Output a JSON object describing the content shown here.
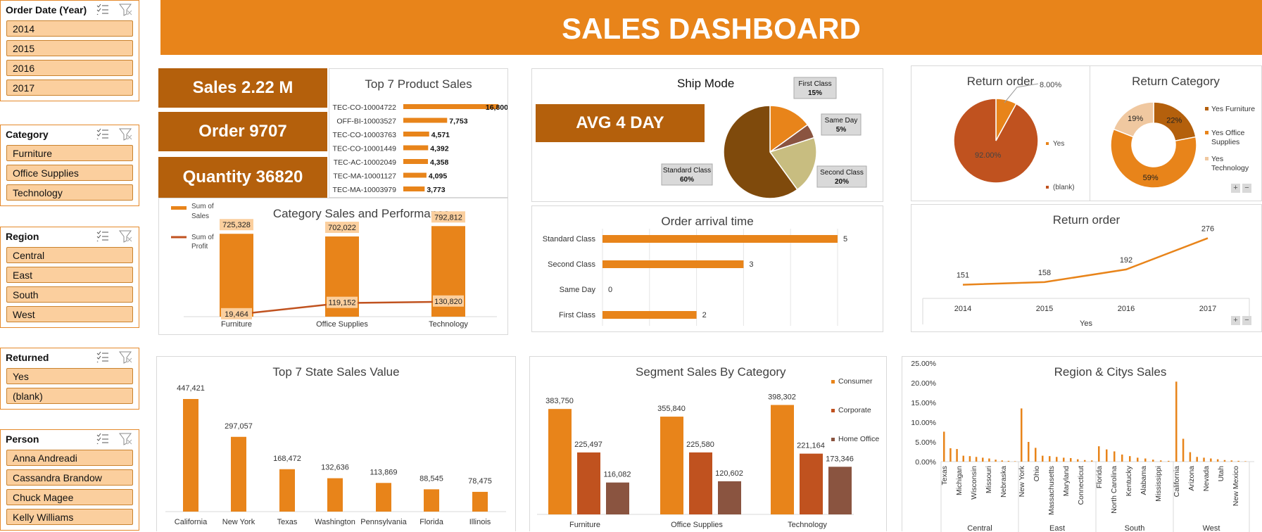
{
  "header": {
    "title": "SALES DASHBOARD"
  },
  "slicers": [
    {
      "title": "Order Date (Year)",
      "items": [
        "2014",
        "2015",
        "2016",
        "2017"
      ]
    },
    {
      "title": "Category",
      "items": [
        "Furniture",
        "Office Supplies",
        "Technology"
      ]
    },
    {
      "title": "Region",
      "items": [
        "Central",
        "East",
        "South",
        "West"
      ]
    },
    {
      "title": "Returned",
      "items": [
        "Yes",
        "(blank)"
      ]
    },
    {
      "title": "Person",
      "items": [
        "Anna Andreadi",
        "Cassandra Brandow",
        "Chuck Magee",
        "Kelly Williams"
      ]
    }
  ],
  "kpis": {
    "sales": "Sales   2.22 M",
    "order": "Order   9707",
    "quantity": "Quantity 36820",
    "avg": "AVG 4 DAY"
  },
  "colors": {
    "orange": "#e8841a",
    "brown": "#b4600c",
    "dark_brown": "#7f4a0c",
    "profit": "#c0521f",
    "tan": "#c8bd80",
    "mid_brown": "#8a5440"
  },
  "chart_data": [
    {
      "id": "top7product",
      "type": "bar",
      "title": "Top 7 Product Sales",
      "categories": [
        "TEC-CO-10004722",
        "OFF-BI-10003527",
        "TEC-CO-10003763",
        "TEC-CO-10001449",
        "TEC-AC-10002049",
        "TEC-MA-10001127",
        "TEC-MA-10003979"
      ],
      "values": [
        16800,
        7753,
        4571,
        4392,
        4358,
        4095,
        3773
      ],
      "labels": [
        "16,800",
        "7,753",
        "4,571",
        "4,392",
        "4,358",
        "4,095",
        "3,773"
      ]
    },
    {
      "id": "category_perf",
      "type": "bar",
      "title": "Category Sales and Performance",
      "categories": [
        "Furniture",
        "Office Supplies",
        "Technology"
      ],
      "series": [
        {
          "name": "Sum of Sales",
          "values": [
            725328,
            702022,
            792812
          ],
          "labels": [
            "725,328",
            "702,022",
            "792,812"
          ]
        },
        {
          "name": "Sum of Profit",
          "values": [
            19464,
            119152,
            130820
          ],
          "labels": [
            "19,464",
            "119,152",
            "130,820"
          ]
        }
      ]
    },
    {
      "id": "shipmode",
      "type": "pie",
      "title": "Ship Mode",
      "slices": [
        {
          "name": "First Class",
          "value": 15,
          "label": "15%"
        },
        {
          "name": "Same Day",
          "value": 5,
          "label": "5%"
        },
        {
          "name": "Second Class",
          "value": 20,
          "label": "20%"
        },
        {
          "name": "Standard Class",
          "value": 60,
          "label": "60%"
        }
      ]
    },
    {
      "id": "arrival",
      "type": "bar",
      "title": "Order arrival time",
      "categories": [
        "Standard Class",
        "Second Class",
        "Same Day",
        "First Class"
      ],
      "values": [
        5,
        3,
        0,
        2
      ],
      "labels": [
        "5",
        "3",
        "0",
        "2"
      ]
    },
    {
      "id": "return_order_pie",
      "type": "pie",
      "title": "Return order",
      "slices": [
        {
          "name": "Yes",
          "value": 8,
          "label": "8.00%"
        },
        {
          "name": "(blank)",
          "value": 92,
          "label": "92.00%"
        }
      ]
    },
    {
      "id": "return_category",
      "type": "pie",
      "title": "Return Category",
      "slices": [
        {
          "name": "Yes Furniture",
          "value": 22,
          "label": "22%"
        },
        {
          "name": "Yes Office Supplies",
          "value": 59,
          "label": "59%"
        },
        {
          "name": "Yes Technology",
          "value": 19,
          "label": "19%"
        }
      ]
    },
    {
      "id": "return_line",
      "type": "line",
      "title": "Return order",
      "x": [
        "2014",
        "2015",
        "2016",
        "2017"
      ],
      "values": [
        151,
        158,
        192,
        276
      ],
      "labels": [
        "151",
        "158",
        "192",
        "276"
      ],
      "xlabel": "Yes"
    },
    {
      "id": "top7state",
      "type": "bar",
      "title": "Top 7  State Sales Value",
      "categories": [
        "California",
        "New York",
        "Texas",
        "Washington",
        "Pennsylvania",
        "Florida",
        "Illinois"
      ],
      "values": [
        447421,
        297057,
        168472,
        132636,
        113869,
        88545,
        78475
      ],
      "labels": [
        "447,421",
        "297,057",
        "168,472",
        "132,636",
        "113,869",
        "88,545",
        "78,475"
      ]
    },
    {
      "id": "segment",
      "type": "bar",
      "title": "Segment Sales By Category",
      "categories": [
        "Furniture",
        "Office Supplies",
        "Technology"
      ],
      "series": [
        {
          "name": "Consumer",
          "values": [
            383750,
            355840,
            398302
          ],
          "labels": [
            "383,750",
            "355,840",
            "398,302"
          ]
        },
        {
          "name": "Corporate",
          "values": [
            225497,
            225580,
            221164
          ],
          "labels": [
            "225,497",
            "225,580",
            "221,164"
          ]
        },
        {
          "name": "Home Office",
          "values": [
            116082,
            120602,
            173346
          ],
          "labels": [
            "116,082",
            "120,602",
            "173,346"
          ]
        }
      ]
    },
    {
      "id": "region_city",
      "type": "bar",
      "title": "Region & Citys Sales",
      "yticks": [
        "25.00%",
        "20.00%",
        "15.00%",
        "10.00%",
        "5.00%",
        "0.00%"
      ],
      "ylim": [
        0,
        25
      ],
      "groups": [
        {
          "name": "Central",
          "ticklabels": [
            "Texas",
            "Michigan",
            "Wisconsin",
            "Missouri",
            "Nebraska"
          ],
          "values": [
            7.6,
            3.4,
            3.2,
            1.5,
            1.4,
            1.2,
            1.0,
            0.8,
            0.5,
            0.3,
            0.2,
            0.1
          ]
        },
        {
          "name": "East",
          "ticklabels": [
            "New York",
            "Ohio",
            "Massachusetts",
            "Maryland",
            "Connecticut"
          ],
          "values": [
            13.5,
            5.0,
            3.5,
            1.5,
            1.4,
            1.2,
            1.0,
            0.9,
            0.6,
            0.4,
            0.3
          ]
        },
        {
          "name": "South",
          "ticklabels": [
            "Florida",
            "North Carolina",
            "Kentucky",
            "Alabama",
            "Mississippi"
          ],
          "values": [
            3.9,
            3.1,
            2.6,
            1.8,
            1.4,
            1.0,
            0.8,
            0.5,
            0.3,
            0.2
          ]
        },
        {
          "name": "West",
          "ticklabels": [
            "California",
            "Arizona",
            "Nevada",
            "Utah",
            "New Mexico"
          ],
          "values": [
            20.3,
            5.8,
            2.4,
            1.2,
            1.0,
            0.8,
            0.6,
            0.4,
            0.3,
            0.2,
            0.1
          ]
        }
      ]
    }
  ]
}
